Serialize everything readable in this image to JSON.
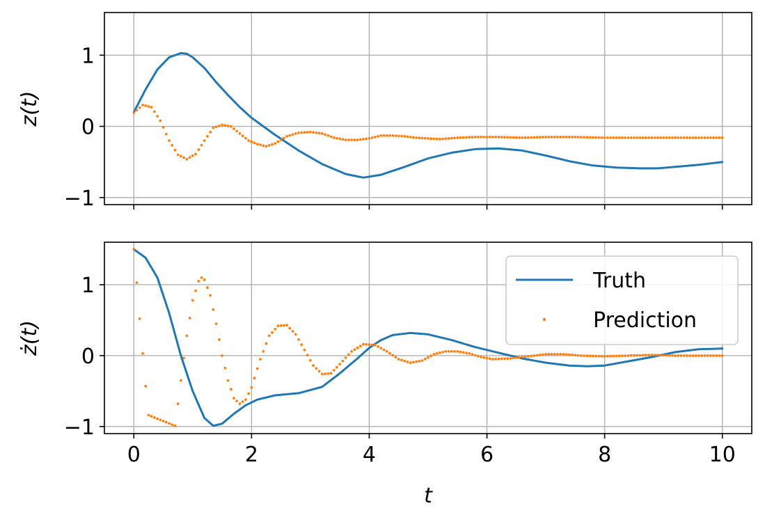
{
  "chart_data": [
    {
      "type": "line",
      "ylabel": "z(t)",
      "xlim": [
        -0.5,
        10.5
      ],
      "ylim": [
        -1.1,
        1.6
      ],
      "x_ticks": [
        0,
        2,
        4,
        6,
        8,
        10
      ],
      "y_ticks": [
        -1,
        0,
        1
      ],
      "y_tick_labels": [
        "−1",
        "0",
        "1"
      ],
      "grid": true,
      "series": [
        {
          "name": "Truth",
          "style": "line",
          "color": "#1f77b4",
          "x": [
            0,
            0.2,
            0.4,
            0.6,
            0.8,
            0.9,
            1.0,
            1.2,
            1.4,
            1.6,
            1.8,
            2.0,
            2.4,
            2.8,
            3.2,
            3.6,
            3.9,
            4.2,
            4.6,
            5.0,
            5.4,
            5.8,
            6.2,
            6.6,
            7.0,
            7.4,
            7.8,
            8.2,
            8.6,
            8.9,
            9.2,
            9.6,
            10.0
          ],
          "values": [
            0.2,
            0.52,
            0.8,
            0.97,
            1.03,
            1.02,
            0.97,
            0.82,
            0.62,
            0.44,
            0.27,
            0.12,
            -0.12,
            -0.34,
            -0.53,
            -0.67,
            -0.72,
            -0.68,
            -0.57,
            -0.45,
            -0.37,
            -0.32,
            -0.31,
            -0.34,
            -0.41,
            -0.49,
            -0.55,
            -0.58,
            -0.59,
            -0.59,
            -0.57,
            -0.54,
            -0.5
          ]
        },
        {
          "name": "Prediction",
          "style": "dots",
          "color": "#ff7f0e",
          "x": [
            0,
            0.15,
            0.3,
            0.45,
            0.6,
            0.75,
            0.9,
            1.05,
            1.2,
            1.35,
            1.5,
            1.65,
            1.8,
            1.95,
            2.1,
            2.25,
            2.4,
            2.6,
            2.8,
            3.0,
            3.2,
            3.4,
            3.6,
            3.8,
            4.0,
            4.2,
            4.4,
            4.6,
            4.8,
            5.0,
            5.2,
            5.5,
            5.8,
            6.2,
            6.6,
            7.0,
            7.5,
            8.0,
            8.5,
            9.0,
            9.5,
            10.0
          ],
          "values": [
            0.19,
            0.3,
            0.27,
            0.08,
            -0.2,
            -0.4,
            -0.46,
            -0.39,
            -0.2,
            -0.02,
            0.02,
            0.0,
            -0.1,
            -0.2,
            -0.25,
            -0.28,
            -0.24,
            -0.14,
            -0.09,
            -0.08,
            -0.1,
            -0.16,
            -0.19,
            -0.19,
            -0.17,
            -0.13,
            -0.13,
            -0.14,
            -0.16,
            -0.17,
            -0.18,
            -0.16,
            -0.15,
            -0.15,
            -0.16,
            -0.15,
            -0.15,
            -0.16,
            -0.16,
            -0.16,
            -0.16,
            -0.16
          ]
        }
      ]
    },
    {
      "type": "line",
      "ylabel": "ż(t)",
      "xlabel": "t",
      "xlim": [
        -0.5,
        10.5
      ],
      "ylim": [
        -1.1,
        1.6
      ],
      "x_ticks": [
        0,
        2,
        4,
        6,
        8,
        10
      ],
      "x_tick_labels": [
        "0",
        "2",
        "4",
        "6",
        "8",
        "10"
      ],
      "y_ticks": [
        -1,
        0,
        1
      ],
      "y_tick_labels": [
        "−1",
        "0",
        "1"
      ],
      "grid": true,
      "legend_position": "upper-right",
      "series": [
        {
          "name": "Truth",
          "style": "line",
          "color": "#1f77b4",
          "x": [
            0,
            0.2,
            0.4,
            0.6,
            0.8,
            1.0,
            1.2,
            1.35,
            1.5,
            1.7,
            1.9,
            2.1,
            2.4,
            2.8,
            3.2,
            3.5,
            3.8,
            4.0,
            4.2,
            4.4,
            4.7,
            5.0,
            5.4,
            5.8,
            6.2,
            6.6,
            7.0,
            7.4,
            7.7,
            8.0,
            8.4,
            8.8,
            9.2,
            9.6,
            10.0
          ],
          "values": [
            1.5,
            1.38,
            1.1,
            0.6,
            0.0,
            -0.5,
            -0.88,
            -0.99,
            -0.96,
            -0.82,
            -0.7,
            -0.62,
            -0.56,
            -0.53,
            -0.44,
            -0.25,
            -0.04,
            0.11,
            0.22,
            0.29,
            0.32,
            0.3,
            0.22,
            0.12,
            0.04,
            -0.04,
            -0.1,
            -0.14,
            -0.15,
            -0.14,
            -0.08,
            -0.02,
            0.05,
            0.09,
            0.1
          ]
        },
        {
          "name": "Prediction",
          "style": "dots",
          "color": "#ff7f0e",
          "x": [
            0,
            0.05,
            0.1,
            0.15,
            0.2,
            0.25,
            0.7,
            0.75,
            0.8,
            0.9,
            1.0,
            1.1,
            1.15,
            1.2,
            1.3,
            1.4,
            1.5,
            1.6,
            1.7,
            1.8,
            1.9,
            2.0,
            2.15,
            2.3,
            2.45,
            2.6,
            2.75,
            2.9,
            3.05,
            3.2,
            3.35,
            3.5,
            3.7,
            3.9,
            4.1,
            4.3,
            4.5,
            4.7,
            4.9,
            5.1,
            5.3,
            5.5,
            5.7,
            5.9,
            6.1,
            6.4,
            6.7,
            7.0,
            7.3,
            7.6,
            8.0,
            8.4,
            8.8,
            9.2,
            9.6,
            10.0
          ],
          "values": [
            1.5,
            1.03,
            0.52,
            0.03,
            -0.43,
            -0.84,
            -0.99,
            -0.68,
            -0.35,
            0.28,
            0.78,
            1.05,
            1.1,
            1.07,
            0.85,
            0.45,
            0.0,
            -0.35,
            -0.6,
            -0.68,
            -0.62,
            -0.45,
            -0.05,
            0.28,
            0.42,
            0.43,
            0.3,
            0.08,
            -0.14,
            -0.26,
            -0.25,
            -0.12,
            0.06,
            0.16,
            0.15,
            0.06,
            -0.05,
            -0.1,
            -0.07,
            0.02,
            0.06,
            0.06,
            0.03,
            -0.02,
            -0.05,
            -0.04,
            -0.01,
            0.02,
            0.02,
            0.0,
            -0.01,
            0.0,
            0.01,
            0.0,
            0.0,
            0.0
          ]
        }
      ]
    }
  ],
  "legend": {
    "items": [
      {
        "label": "Truth",
        "color": "#1f77b4",
        "style": "line"
      },
      {
        "label": "Prediction",
        "color": "#ff7f0e",
        "style": "dot"
      }
    ]
  }
}
